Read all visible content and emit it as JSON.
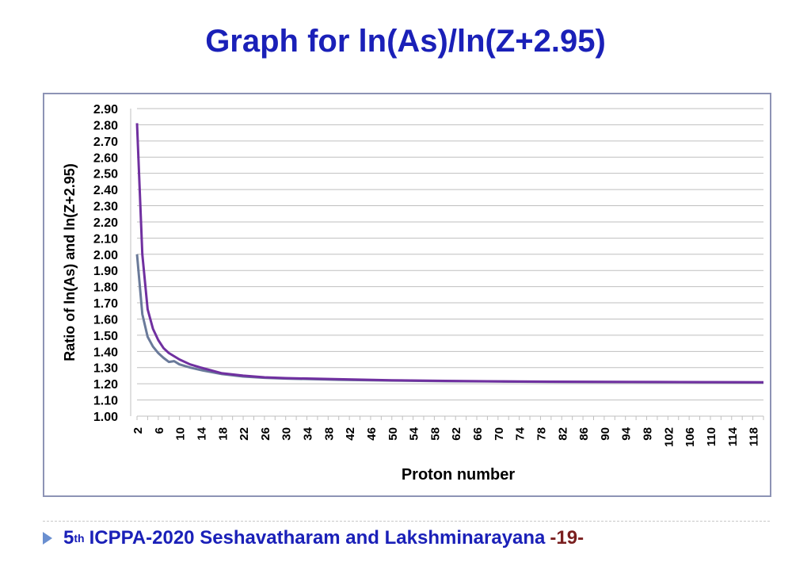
{
  "slide": {
    "title": "Graph for ln(As)/ln(Z+2.95)",
    "footer": {
      "ordinal_num": "5",
      "ordinal_sup": "th",
      "text": "ICPPA-2020 Seshavatharam and Lakshminarayana",
      "page": "-19-"
    }
  },
  "colors": {
    "title": "#1a20b8",
    "series_purple": "#7030a0",
    "series_gray": "#6a7a9a",
    "grid": "#bfbfbf",
    "frame": "#8d93b5"
  },
  "chart_data": {
    "type": "line",
    "title": "",
    "xlabel": "Proton number",
    "ylabel": "Ratio of ln(As) and ln(Z+2.95)",
    "ylim": [
      1.0,
      2.9
    ],
    "xlim": [
      2,
      120
    ],
    "grid": "horizontal",
    "yticks": [
      "1.00",
      "1.10",
      "1.20",
      "1.30",
      "1.40",
      "1.50",
      "1.60",
      "1.70",
      "1.80",
      "1.90",
      "2.00",
      "2.10",
      "2.20",
      "2.30",
      "2.40",
      "2.50",
      "2.60",
      "2.70",
      "2.80",
      "2.90"
    ],
    "xticks": [
      "2",
      "6",
      "10",
      "14",
      "18",
      "22",
      "26",
      "30",
      "34",
      "38",
      "42",
      "46",
      "50",
      "54",
      "58",
      "62",
      "66",
      "70",
      "74",
      "78",
      "82",
      "86",
      "90",
      "94",
      "98",
      "102",
      "106",
      "110",
      "114",
      "118"
    ],
    "series": [
      {
        "color": "#7030a0",
        "x": [
          2,
          3,
          4,
          5,
          6,
          7,
          8,
          10,
          12,
          14,
          18,
          22,
          26,
          30,
          40,
          50,
          60,
          70,
          80,
          90,
          100,
          110,
          120
        ],
        "y": [
          2.81,
          2.0,
          1.66,
          1.54,
          1.47,
          1.42,
          1.39,
          1.35,
          1.32,
          1.3,
          1.265,
          1.25,
          1.24,
          1.235,
          1.228,
          1.222,
          1.218,
          1.215,
          1.213,
          1.212,
          1.211,
          1.21,
          1.209
        ]
      },
      {
        "color": "#6a7a9a",
        "x": [
          2,
          3,
          4,
          5,
          6,
          7,
          8,
          9,
          10,
          12,
          14,
          18,
          22,
          26,
          30,
          40,
          50,
          60,
          70,
          80,
          90,
          100,
          110,
          120
        ],
        "y": [
          2.0,
          1.63,
          1.49,
          1.43,
          1.39,
          1.36,
          1.335,
          1.34,
          1.32,
          1.3,
          1.285,
          1.26,
          1.245,
          1.237,
          1.232,
          1.225,
          1.22,
          1.216,
          1.214,
          1.212,
          1.211,
          1.21,
          1.209,
          1.208
        ]
      }
    ]
  }
}
